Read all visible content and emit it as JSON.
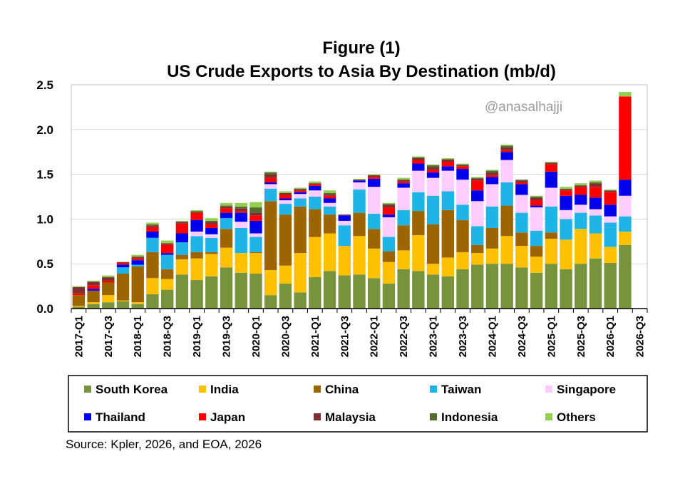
{
  "chart_data": {
    "type": "bar",
    "stacked": true,
    "title": "Figure (1)",
    "subtitle": "US Crude Exports to Asia By Destination (mb/d)",
    "watermark": "@anasalhajji",
    "source": "Source: Kpler, 2026, and EOA, 2026",
    "xlabel": "",
    "ylabel": "",
    "ylim": [
      0,
      2.5
    ],
    "yticks": [
      "0.0",
      "0.5",
      "1.0",
      "1.5",
      "2.0",
      "2.5"
    ],
    "grid": true,
    "legend_position": "bottom",
    "categories": [
      "2017-Q1",
      "2017-Q2",
      "2017-Q3",
      "2017-Q4",
      "2018-Q1",
      "2018-Q2",
      "2018-Q3",
      "2018-Q4",
      "2019-Q1",
      "2019-Q2",
      "2019-Q3",
      "2019-Q4",
      "2020-Q1",
      "2020-Q2",
      "2020-Q3",
      "2020-Q4",
      "2021-Q1",
      "2021-Q2",
      "2021-Q3",
      "2021-Q4",
      "2022-Q1",
      "2022-Q2",
      "2022-Q3",
      "2022-Q4",
      "2023-Q1",
      "2023-Q2",
      "2023-Q3",
      "2023-Q4",
      "2024-Q1",
      "2024-Q2",
      "2024-Q3",
      "2024-Q4",
      "2025-Q1",
      "2025-Q2",
      "2025-Q3",
      "2025-Q4",
      "2026-Q1",
      "2026-Q2",
      "2026-Q3"
    ],
    "x_tick_labels": [
      "2017-Q1",
      "",
      "2017-Q3",
      "",
      "2018-Q1",
      "",
      "2018-Q3",
      "",
      "2019-Q1",
      "",
      "2019-Q3",
      "",
      "2020-Q1",
      "",
      "2020-Q3",
      "",
      "2021-Q1",
      "",
      "2021-Q3",
      "",
      "2022-Q1",
      "",
      "2022-Q3",
      "",
      "2023-Q1",
      "",
      "2023-Q3",
      "",
      "2024-Q1",
      "",
      "2024-Q3",
      "",
      "2025-Q1",
      "",
      "2025-Q3",
      "",
      "2026-Q1",
      "",
      "2026-Q3"
    ],
    "series": [
      {
        "name": "South Korea",
        "color": "#77933c",
        "values": [
          0.02,
          0.05,
          0.07,
          0.08,
          0.05,
          0.16,
          0.21,
          0.38,
          0.32,
          0.36,
          0.46,
          0.4,
          0.39,
          0.15,
          0.28,
          0.18,
          0.35,
          0.42,
          0.37,
          0.38,
          0.34,
          0.28,
          0.44,
          0.42,
          0.38,
          0.36,
          0.44,
          0.49,
          0.5,
          0.5,
          0.46,
          0.4,
          0.5,
          0.44,
          0.5,
          0.56,
          0.51,
          0.71,
          0
        ]
      },
      {
        "name": "India",
        "color": "#ffc000",
        "values": [
          0.01,
          0.02,
          0.08,
          0.01,
          0.02,
          0.18,
          0.12,
          0.17,
          0.24,
          0.25,
          0.22,
          0.22,
          0.23,
          0.28,
          0.2,
          0.44,
          0.45,
          0.42,
          0.33,
          0.43,
          0.33,
          0.24,
          0.21,
          0.4,
          0.12,
          0.21,
          0.19,
          0.13,
          0.17,
          0.31,
          0.24,
          0.18,
          0.28,
          0.33,
          0.39,
          0.28,
          0.18,
          0.15,
          0
        ]
      },
      {
        "name": "China",
        "color": "#9c6500",
        "values": [
          0.12,
          0.13,
          0.14,
          0.3,
          0.4,
          0.29,
          0.11,
          0.05,
          0.07,
          0.02,
          0.21,
          0.0,
          0.01,
          0.77,
          0.57,
          0.52,
          0.31,
          0.21,
          0.0,
          0.26,
          0.22,
          0.12,
          0.28,
          0.27,
          0.44,
          0.53,
          0.36,
          0.09,
          0.23,
          0.34,
          0.15,
          0.12,
          0.07,
          0,
          0,
          0,
          0,
          0,
          0
        ]
      },
      {
        "name": "Taiwan",
        "color": "#1fb4e6",
        "values": [
          0,
          0,
          0,
          0.07,
          0.02,
          0.16,
          0.16,
          0.14,
          0.18,
          0.16,
          0.12,
          0.28,
          0.17,
          0.14,
          0.12,
          0.09,
          0.14,
          0.09,
          0.23,
          0.26,
          0.17,
          0.16,
          0.17,
          0.21,
          0.32,
          0.21,
          0.17,
          0.21,
          0.24,
          0.26,
          0.22,
          0.17,
          0.29,
          0.23,
          0.18,
          0.2,
          0.27,
          0.17,
          0
        ]
      },
      {
        "name": "Singapore",
        "color": "#ffccff",
        "values": [
          0,
          0,
          0,
          0,
          0,
          0,
          0,
          0,
          0.05,
          0.04,
          0.0,
          0.07,
          0.04,
          0.05,
          0.04,
          0.05,
          0.07,
          0.04,
          0.05,
          0.08,
          0.3,
          0.22,
          0.25,
          0.24,
          0.2,
          0.23,
          0.28,
          0.28,
          0.25,
          0.25,
          0.2,
          0.26,
          0.21,
          0.1,
          0.09,
          0.07,
          0.07,
          0.23,
          0
        ]
      },
      {
        "name": "Thailand",
        "color": "#0000ee",
        "values": [
          0,
          0.02,
          0,
          0.03,
          0.05,
          0.07,
          0.02,
          0.1,
          0.13,
          0.07,
          0.06,
          0.1,
          0.14,
          0.02,
          0.02,
          0.02,
          0.05,
          0.05,
          0.06,
          0.02,
          0.09,
          0.03,
          0.05,
          0.08,
          0.06,
          0.05,
          0.12,
          0.12,
          0.08,
          0.09,
          0.12,
          0.02,
          0.18,
          0.16,
          0.11,
          0.13,
          0.13,
          0.18,
          0
        ]
      },
      {
        "name": "Japan",
        "color": "#ff0000",
        "values": [
          0.02,
          0.04,
          0.02,
          0.02,
          0.02,
          0.05,
          0.09,
          0.11,
          0.08,
          0.04,
          0.05,
          0.02,
          0.06,
          0.05,
          0.04,
          0.02,
          0.02,
          0.03,
          0,
          0,
          0.02,
          0.08,
          0.02,
          0.04,
          0.03,
          0.05,
          0.03,
          0.11,
          0.02,
          0.02,
          0.02,
          0.06,
          0.08,
          0.06,
          0.09,
          0.12,
          0.14,
          0.93,
          0
        ]
      },
      {
        "name": "Malaysia",
        "color": "#7f2f2f",
        "values": [
          0.07,
          0.04,
          0.04,
          0.01,
          0.02,
          0.02,
          0.02,
          0.02,
          0.01,
          0.03,
          0.02,
          0.03,
          0.03,
          0.04,
          0.02,
          0.01,
          0.01,
          0.02,
          0.01,
          0.01,
          0.02,
          0.03,
          0.02,
          0.02,
          0.03,
          0.02,
          0.01,
          0.02,
          0.03,
          0.03,
          0.02,
          0.03,
          0.02,
          0.01,
          0.01,
          0.04,
          0.02,
          0,
          0
        ]
      },
      {
        "name": "Indonesia",
        "color": "#556b2f",
        "values": [
          0,
          0,
          0,
          0,
          0,
          0.01,
          0,
          0,
          0.01,
          0.01,
          0.01,
          0.02,
          0.06,
          0.02,
          0,
          0.01,
          0,
          0.01,
          0,
          0,
          0,
          0.01,
          0,
          0.01,
          0.02,
          0.01,
          0.01,
          0.01,
          0.02,
          0.02,
          0.01,
          0.01,
          0,
          0.01,
          0.01,
          0.01,
          0,
          0,
          0
        ]
      },
      {
        "name": "Others",
        "color": "#92d050",
        "values": [
          0.01,
          0.01,
          0.02,
          0,
          0.02,
          0.02,
          0.03,
          0.01,
          0.01,
          0.03,
          0.03,
          0.04,
          0.06,
          0.01,
          0.02,
          0.01,
          0.02,
          0.03,
          0,
          0.01,
          0.01,
          0.01,
          0.02,
          0.01,
          0.01,
          0.01,
          0.01,
          0.01,
          0.01,
          0.01,
          0,
          0.01,
          0.01,
          0.02,
          0.02,
          0.02,
          0.01,
          0.05,
          0
        ]
      }
    ]
  }
}
